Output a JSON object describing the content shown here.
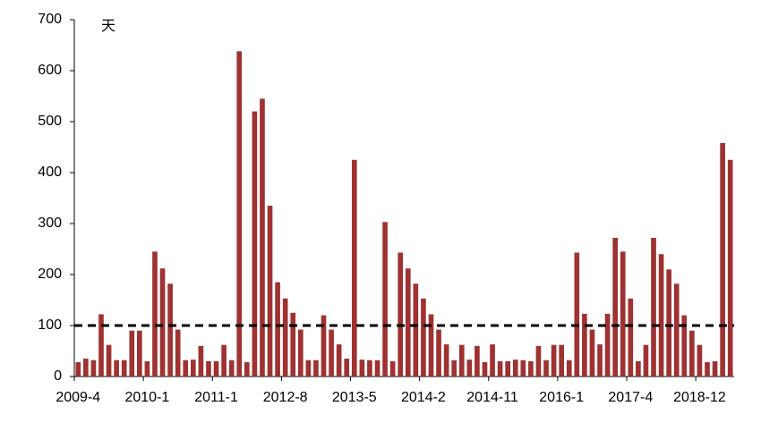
{
  "chart_data": {
    "type": "bar",
    "annotation": "天",
    "categories": [
      "2009-4",
      null,
      null,
      null,
      null,
      null,
      null,
      null,
      null,
      "2010-1",
      null,
      null,
      null,
      null,
      null,
      null,
      null,
      null,
      "2011-1",
      null,
      null,
      null,
      null,
      null,
      null,
      null,
      null,
      "2012-8",
      null,
      null,
      null,
      null,
      null,
      null,
      null,
      null,
      "2013-5",
      null,
      null,
      null,
      null,
      null,
      null,
      null,
      null,
      "2014-2",
      null,
      null,
      null,
      null,
      null,
      null,
      null,
      null,
      "2014-11",
      null,
      null,
      null,
      null,
      null,
      null,
      null,
      null,
      "2016-1",
      null,
      null,
      null,
      null,
      null,
      null,
      null,
      null,
      "2017-4",
      null,
      null,
      null,
      null,
      null,
      null,
      null,
      null,
      "2018-12",
      null,
      null,
      null,
      null
    ],
    "values": [
      28,
      35,
      32,
      122,
      62,
      32,
      32,
      90,
      90,
      30,
      245,
      212,
      182,
      92,
      32,
      33,
      60,
      30,
      30,
      62,
      32,
      638,
      28,
      520,
      545,
      335,
      185,
      153,
      125,
      92,
      32,
      32,
      120,
      92,
      63,
      35,
      425,
      33,
      32,
      32,
      303,
      30,
      243,
      212,
      182,
      153,
      122,
      92,
      63,
      32,
      62,
      33,
      60,
      28,
      63,
      30,
      30,
      33,
      32,
      30,
      60,
      32,
      62,
      62,
      32,
      243,
      123,
      92,
      63,
      123,
      272,
      245,
      153,
      30,
      62,
      272,
      240,
      210,
      182,
      120,
      90,
      62,
      28,
      30,
      458,
      425
    ],
    "color": "#9e3232",
    "reference_line": 100,
    "ylim": [
      0,
      700
    ],
    "yticks": [
      0,
      100,
      200,
      300,
      400,
      500,
      600,
      700
    ]
  }
}
